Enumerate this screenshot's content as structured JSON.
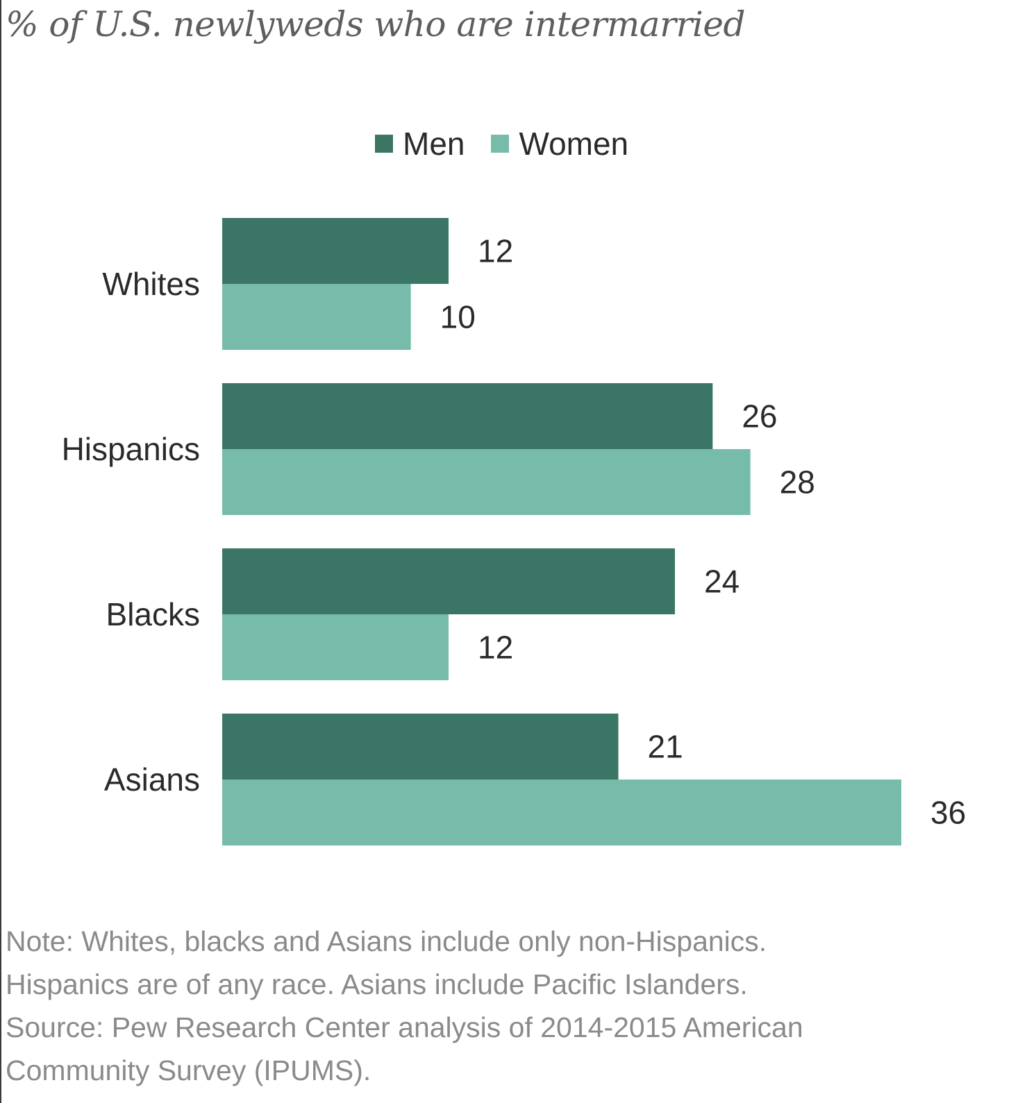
{
  "chart_data": {
    "type": "bar",
    "orientation": "horizontal",
    "title": "% of U.S. newlyweds who are intermarried",
    "categories": [
      "Whites",
      "Hispanics",
      "Blacks",
      "Asians"
    ],
    "series": [
      {
        "name": "Men",
        "color": "#3b7565",
        "values": [
          12,
          26,
          24,
          21
        ]
      },
      {
        "name": "Women",
        "color": "#77bcab",
        "values": [
          10,
          28,
          12,
          36
        ]
      }
    ],
    "xlim": [
      0,
      36
    ],
    "grid": false,
    "legend_position": "top-center"
  },
  "legend": {
    "men_label": "Men",
    "women_label": "Women"
  },
  "footnote": {
    "line1": "Note: Whites, blacks and Asians include only non-Hispanics.",
    "line2": "Hispanics are of any race. Asians include Pacific Islanders.",
    "line3": "Source: Pew Research Center analysis of 2014-2015 American",
    "line4": "Community Survey (IPUMS)."
  }
}
